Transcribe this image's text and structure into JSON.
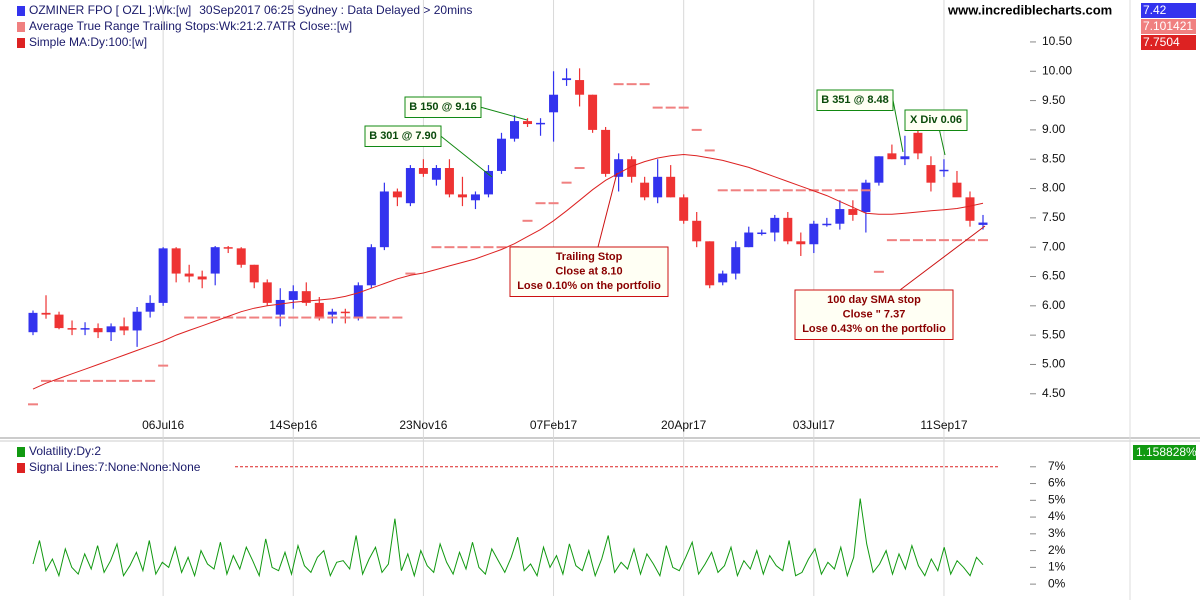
{
  "header": {
    "site": "www.incrediblecharts.com"
  },
  "chart_data": [
    {
      "type": "candlestick",
      "subtitle": "30Sep2017 06:25 Sydney : Data Delayed > 20mins",
      "categories": [
        null,
        null,
        null,
        null,
        null,
        null,
        null,
        null,
        null,
        null,
        "06Jul16",
        null,
        null,
        null,
        null,
        null,
        null,
        null,
        null,
        null,
        "14Sep16",
        null,
        null,
        null,
        null,
        null,
        null,
        null,
        null,
        null,
        "23Nov16",
        null,
        null,
        null,
        null,
        null,
        null,
        null,
        null,
        null,
        "07Feb17",
        null,
        null,
        null,
        null,
        null,
        null,
        null,
        null,
        null,
        "20Apr17",
        null,
        null,
        null,
        null,
        null,
        null,
        null,
        null,
        null,
        "03Jul17",
        null,
        null,
        null,
        null,
        null,
        null,
        null,
        null,
        null,
        "11Sep17",
        null,
        null,
        null
      ],
      "ylim": [
        3.78,
        11.13
      ],
      "yticks": [
        {
          "value": 4.5,
          "label": "4.50"
        },
        {
          "value": 5,
          "label": "5.00"
        },
        {
          "value": 5.5,
          "label": "5.50"
        },
        {
          "value": 6,
          "label": "6.00"
        },
        {
          "value": 6.5,
          "label": "6.50"
        },
        {
          "value": 7,
          "label": "7.00"
        },
        {
          "value": 7.5,
          "label": "7.50"
        },
        {
          "value": 8,
          "label": "8.00"
        },
        {
          "value": 8.5,
          "label": "8.50"
        },
        {
          "value": 9,
          "label": "9.00"
        },
        {
          "value": 9.5,
          "label": "9.50"
        },
        {
          "value": 10,
          "label": "10.00"
        },
        {
          "value": 10.5,
          "label": "10.50"
        }
      ],
      "series": [
        {
          "name": "OZMINER FPO [ OZL ]:Wk:[w]",
          "kind": "ohlc",
          "color": "#3333ee",
          "up_color": "#3333ee",
          "down_color": "#ee3333",
          "last": 7.42,
          "open": [
            5.55,
            5.88,
            5.85,
            5.62,
            5.6,
            5.62,
            5.55,
            5.65,
            5.58,
            5.9,
            6.05,
            6.98,
            6.55,
            6.5,
            6.55,
            7.0,
            6.98,
            6.7,
            6.4,
            5.85,
            6.1,
            6.25,
            6.05,
            5.85,
            5.9,
            5.8,
            6.35,
            7.0,
            7.95,
            7.75,
            8.35,
            8.15,
            8.35,
            7.9,
            7.8,
            7.9,
            8.3,
            8.85,
            9.15,
            9.1,
            9.3,
            9.85,
            9.85,
            9.6,
            9.0,
            8.2,
            8.5,
            8.1,
            7.85,
            8.2,
            7.85,
            7.45,
            7.1,
            6.4,
            6.55,
            7.0,
            7.25,
            7.25,
            7.5,
            7.1,
            7.05,
            7.4,
            7.4,
            7.65,
            7.6,
            8.1,
            8.6,
            8.5,
            8.95,
            8.4,
            8.3,
            8.1,
            7.85,
            7.38
          ],
          "high": [
            5.92,
            6.18,
            5.9,
            5.75,
            5.72,
            5.7,
            5.7,
            5.8,
            5.98,
            6.18,
            7.0,
            7.0,
            6.7,
            6.6,
            7.02,
            7.02,
            7.0,
            6.7,
            6.45,
            6.3,
            6.35,
            6.4,
            6.15,
            5.95,
            5.95,
            6.4,
            7.05,
            8.1,
            8.0,
            8.4,
            8.5,
            8.4,
            8.5,
            8.2,
            7.95,
            8.4,
            8.95,
            9.25,
            9.2,
            9.2,
            10.0,
            10.05,
            10.05,
            9.6,
            9.05,
            8.6,
            8.55,
            8.2,
            8.5,
            8.4,
            7.9,
            7.6,
            7.1,
            6.6,
            7.1,
            7.35,
            7.3,
            7.55,
            7.6,
            7.25,
            7.45,
            7.5,
            7.8,
            7.8,
            8.15,
            8.55,
            8.75,
            8.9,
            9.0,
            8.55,
            8.5,
            8.3,
            7.95,
            7.55
          ],
          "low": [
            5.5,
            5.78,
            5.6,
            5.5,
            5.5,
            5.45,
            5.4,
            5.5,
            5.3,
            5.8,
            6.0,
            6.4,
            6.4,
            6.3,
            6.35,
            6.9,
            6.65,
            6.3,
            6.0,
            5.65,
            5.95,
            6.0,
            5.75,
            5.7,
            5.7,
            5.75,
            6.3,
            6.95,
            7.7,
            7.7,
            8.2,
            8.05,
            7.85,
            7.7,
            7.65,
            7.85,
            8.25,
            8.8,
            9.05,
            8.9,
            8.8,
            9.75,
            9.4,
            8.95,
            8.2,
            7.95,
            8.1,
            7.8,
            7.75,
            7.85,
            7.4,
            7.0,
            6.3,
            6.35,
            6.45,
            7.0,
            7.2,
            7.1,
            7.05,
            6.85,
            6.9,
            7.35,
            7.3,
            7.45,
            7.25,
            8.05,
            8.5,
            8.4,
            8.5,
            7.95,
            8.2,
            7.9,
            7.35,
            7.3
          ],
          "close": [
            5.88,
            5.85,
            5.62,
            5.6,
            5.62,
            5.55,
            5.65,
            5.58,
            5.9,
            6.05,
            6.98,
            6.55,
            6.5,
            6.45,
            7.0,
            6.98,
            6.7,
            6.4,
            6.05,
            6.1,
            6.25,
            6.05,
            5.8,
            5.9,
            5.88,
            6.35,
            7.0,
            7.95,
            7.85,
            8.35,
            8.25,
            8.35,
            7.9,
            7.85,
            7.9,
            8.3,
            8.85,
            9.15,
            9.1,
            9.12,
            9.6,
            9.88,
            9.6,
            9.0,
            8.25,
            8.5,
            8.2,
            7.85,
            8.2,
            7.85,
            7.45,
            7.1,
            6.35,
            6.55,
            7.0,
            7.25,
            7.25,
            7.5,
            7.1,
            7.05,
            7.4,
            7.4,
            7.65,
            7.55,
            8.1,
            8.55,
            8.5,
            8.55,
            8.6,
            8.1,
            8.32,
            7.85,
            7.45,
            7.42
          ]
        },
        {
          "name": "Average True Range Trailing Stops:Wk:21:2.7ATR Close::[w]",
          "kind": "dash",
          "color": "#f08080",
          "last": 7.101421,
          "values": [
            4.32,
            4.72,
            4.72,
            4.72,
            4.72,
            4.72,
            4.72,
            4.72,
            4.72,
            4.72,
            4.98,
            null,
            5.8,
            5.8,
            5.8,
            5.8,
            5.8,
            5.8,
            5.8,
            5.8,
            5.8,
            5.8,
            5.8,
            5.8,
            5.8,
            5.8,
            5.8,
            5.8,
            5.8,
            6.55,
            null,
            7.0,
            7.0,
            7.0,
            7.0,
            7.0,
            7.0,
            7.0,
            7.45,
            7.75,
            7.75,
            8.1,
            8.35,
            null,
            null,
            9.78,
            9.78,
            9.78,
            9.38,
            9.38,
            9.38,
            9.0,
            8.65,
            7.97,
            7.97,
            7.97,
            7.97,
            7.97,
            7.97,
            7.97,
            7.97,
            7.97,
            7.97,
            7.97,
            7.97,
            6.58,
            7.12,
            7.12,
            7.12,
            7.12,
            7.12,
            7.12,
            7.12,
            7.12
          ]
        },
        {
          "name": "Simple MA:Dy:100:[w]",
          "kind": "line",
          "color": "#dd2222",
          "last": 7.7504,
          "values": [
            4.58,
            4.68,
            4.76,
            4.84,
            4.92,
            5.0,
            5.08,
            5.16,
            5.24,
            5.32,
            5.4,
            5.5,
            5.58,
            5.66,
            5.74,
            5.82,
            5.9,
            5.96,
            6.0,
            6.03,
            6.06,
            6.08,
            6.1,
            6.12,
            6.16,
            6.22,
            6.3,
            6.38,
            6.46,
            6.52,
            6.56,
            6.62,
            6.68,
            6.74,
            6.8,
            6.88,
            6.96,
            7.06,
            7.18,
            7.3,
            7.45,
            7.62,
            7.8,
            7.98,
            8.14,
            8.26,
            8.38,
            8.46,
            8.52,
            8.56,
            8.58,
            8.56,
            8.52,
            8.48,
            8.42,
            8.36,
            8.28,
            8.2,
            8.12,
            8.04,
            7.96,
            7.88,
            7.78,
            7.68,
            7.58,
            7.56,
            7.56,
            7.58,
            7.6,
            7.62,
            7.64,
            7.66,
            7.7,
            7.75
          ]
        }
      ],
      "annotations": [
        {
          "lines": [
            "B 150 @ 9.16"
          ],
          "color": "#118811"
        },
        {
          "lines": [
            "B 301 @ 7.90"
          ],
          "color": "#118811"
        },
        {
          "lines": [
            "B 351 @ 8.48"
          ],
          "color": "#118811"
        },
        {
          "lines": [
            "X Div 0.06"
          ],
          "color": "#118811"
        },
        {
          "lines": [
            "Trailing Stop",
            "Close at 8.10",
            "Lose 0.10% on the portfolio"
          ],
          "color": "#cc1111"
        },
        {
          "lines": [
            "100 day SMA stop",
            "Close \" 7.37",
            "Lose 0.43% on the portfolio"
          ],
          "color": "#cc1111"
        }
      ]
    },
    {
      "type": "line",
      "ylim": [
        -0.47,
        8.24
      ],
      "yticks": [
        {
          "value": 0,
          "label": "0%"
        },
        {
          "value": 1,
          "label": "1%"
        },
        {
          "value": 2,
          "label": "2%"
        },
        {
          "value": 3,
          "label": "3%"
        },
        {
          "value": 4,
          "label": "4%"
        },
        {
          "value": 5,
          "label": "5%"
        },
        {
          "value": 6,
          "label": "6%"
        },
        {
          "value": 7,
          "label": "7%"
        }
      ],
      "series": [
        {
          "name": "Volatility:Dy:2",
          "kind": "line",
          "color": "#119911",
          "last": {
            "value": 1.158828,
            "label": "1.158828%"
          },
          "values": [
            1.2,
            2.6,
            0.8,
            1.5,
            0.5,
            2.1,
            1.0,
            0.6,
            1.8,
            0.9,
            2.3,
            0.7,
            1.4,
            2.4,
            0.5,
            1.1,
            1.9,
            0.8,
            2.6,
            0.6,
            1.3,
            1.0,
            2.2,
            0.7,
            1.6,
            0.5,
            2.0,
            1.2,
            0.9,
            2.5,
            0.6,
            1.7,
            0.9,
            2.2,
            1.4,
            0.5,
            2.7,
            1.0,
            0.8,
            1.9,
            0.6,
            2.3,
            1.1,
            0.7,
            1.6,
            2.0,
            0.5,
            1.3,
            1.4,
            0.9,
            2.9,
            0.6,
            1.5,
            2.2,
            0.7,
            1.2,
            3.9,
            0.8,
            1.8,
            0.5,
            2.0,
            1.1,
            0.7,
            2.4,
            1.3,
            0.6,
            1.9,
            0.9,
            2.5,
            1.0,
            0.6,
            2.1,
            1.4,
            0.7,
            1.6,
            2.8,
            0.8,
            1.2,
            0.5,
            2.2,
            1.0,
            1.7,
            0.6,
            2.4,
            1.1,
            0.8,
            2.0,
            0.5,
            1.5,
            2.9,
            0.7,
            1.3,
            0.9,
            2.1,
            0.6,
            1.8,
            1.2,
            0.5,
            2.3,
            1.0,
            0.8,
            1.6,
            2.5,
            0.6,
            1.2,
            1.9,
            0.7,
            1.1,
            2.2,
            0.5,
            1.4,
            0.9,
            2.0,
            0.6,
            1.7,
            1.1,
            0.8,
            2.6,
            0.5,
            0.7,
            1.5,
            2.1,
            0.6,
            1.3,
            0.9,
            2.2,
            0.5,
            1.6,
            5.1,
            2.4,
            0.7,
            1.2,
            2.0,
            0.6,
            1.8,
            0.9,
            2.3,
            1.1,
            0.5,
            1.5,
            0.8,
            2.2,
            0.6,
            1.4,
            1.0,
            0.5,
            1.6,
            1.16
          ]
        },
        {
          "name": "Signal Lines:7:None:None:None",
          "kind": "level",
          "color": "#dd2222",
          "level": 7
        }
      ]
    }
  ]
}
